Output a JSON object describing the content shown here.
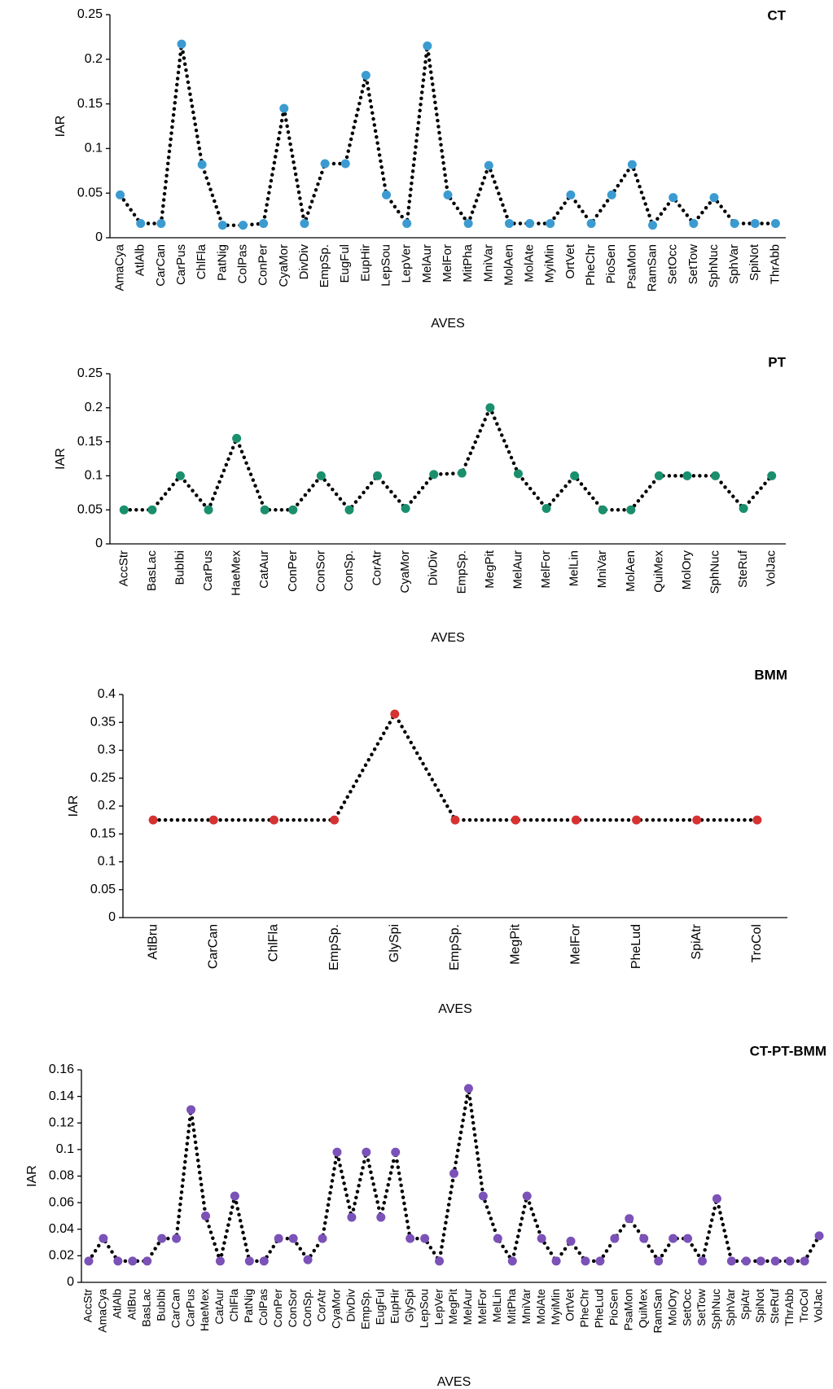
{
  "chart_data": [
    {
      "type": "line",
      "title": "CT",
      "x_label": "AVES",
      "y_label": "IAR",
      "color": "#3b9bd1",
      "categories": [
        "AmaCya",
        "AtlAlb",
        "CarCan",
        "CarPus",
        "ChlFla",
        "PatNig",
        "ColPas",
        "ConPer",
        "CyaMor",
        "DivDiv",
        "EmpSp.",
        "EugFul",
        "EupHir",
        "LepSou",
        "LepVer",
        "MelAur",
        "MelFor",
        "MitPha",
        "MniVar",
        "MolAen",
        "MolAte",
        "MyiMin",
        "OrtVet",
        "PheChr",
        "PioSen",
        "PsaMon",
        "RamSan",
        "SetOcc",
        "SetTow",
        "SphNuc",
        "SphVar",
        "SpiNot",
        "ThrAbb"
      ],
      "values": [
        0.048,
        0.016,
        0.016,
        0.217,
        0.082,
        0.014,
        0.014,
        0.016,
        0.145,
        0.016,
        0.083,
        0.083,
        0.182,
        0.048,
        0.016,
        0.215,
        0.048,
        0.016,
        0.081,
        0.016,
        0.016,
        0.016,
        0.048,
        0.016,
        0.048,
        0.082,
        0.014,
        0.045,
        0.016,
        0.045,
        0.016,
        0.016,
        0.016
      ],
      "ylim": [
        0,
        0.25
      ],
      "yticks": [
        0,
        0.05,
        0.1,
        0.15,
        0.2,
        0.25
      ]
    },
    {
      "type": "line",
      "title": "PT",
      "x_label": "AVES",
      "y_label": "IAR",
      "color": "#1a8f6e",
      "categories": [
        "AccStr",
        "BasLac",
        "BubIbi",
        "CarPus",
        "HaeMex",
        "CatAur",
        "ConPer",
        "ConSor",
        "ConSp.",
        "CorAtr",
        "CyaMor",
        "DivDiv",
        "EmpSp.",
        "MegPit",
        "MelAur",
        "MelFor",
        "MelLin",
        "MniVar",
        "MolAen",
        "QuiMex",
        "MolOry",
        "SphNuc",
        "SteRuf",
        "VolJac"
      ],
      "values": [
        0.05,
        0.05,
        0.1,
        0.05,
        0.155,
        0.05,
        0.05,
        0.1,
        0.05,
        0.1,
        0.052,
        0.102,
        0.104,
        0.2,
        0.103,
        0.052,
        0.1,
        0.05,
        0.05,
        0.1,
        0.1,
        0.1,
        0.052,
        0.1
      ],
      "ylim": [
        0,
        0.25
      ],
      "yticks": [
        0,
        0.05,
        0.1,
        0.15,
        0.2,
        0.25
      ]
    },
    {
      "type": "line",
      "title": "BMM",
      "x_label": "AVES",
      "y_label": "IAR",
      "color": "#d63232",
      "categories": [
        "AtlBru",
        "CarCan",
        "ChlFla",
        "EmpSp.",
        "GlySpi",
        "EmpSp.",
        "MegPit",
        "MelFor",
        "PheLud",
        "SpiAtr",
        "TroCol"
      ],
      "values": [
        0.175,
        0.175,
        0.175,
        0.175,
        0.365,
        0.175,
        0.175,
        0.175,
        0.175,
        0.175,
        0.175
      ],
      "ylim": [
        0,
        0.4
      ],
      "yticks": [
        0,
        0.05,
        0.1,
        0.15,
        0.2,
        0.25,
        0.3,
        0.35,
        0.4
      ]
    },
    {
      "type": "line",
      "title": "CT-PT-BMM",
      "x_label": "AVES",
      "y_label": "IAR",
      "color": "#7a52b8",
      "categories": [
        "AccStr",
        "AmaCya",
        "AtlAlb",
        "AtlBru",
        "BasLac",
        "BubIbi",
        "CarCan",
        "CarPus",
        "HaeMex",
        "CatAur",
        "ChlFla",
        "PatNig",
        "ColPas",
        "ConPer",
        "ConSor",
        "ConSp.",
        "CorAtr",
        "CyaMor",
        "DivDiv",
        "EmpSp.",
        "EugFul",
        "EupHir",
        "GlySpi",
        "LepSou",
        "LepVer",
        "MegPit",
        "MelAur",
        "MelFor",
        "MelLin",
        "MitPha",
        "MniVar",
        "MolAte",
        "MyiMin",
        "OrtVet",
        "PheChr",
        "PheLud",
        "PioSen",
        "PsaMon",
        "QuiMex",
        "RamSan",
        "MolOry",
        "SetOcc",
        "SetTow",
        "SphNuc",
        "SphVar",
        "SpiAtr",
        "SpiNot",
        "SteRuf",
        "ThrAbb",
        "TroCol",
        "VolJac"
      ],
      "values": [
        0.016,
        0.033,
        0.016,
        0.016,
        0.016,
        0.033,
        0.033,
        0.13,
        0.05,
        0.016,
        0.065,
        0.016,
        0.016,
        0.033,
        0.033,
        0.017,
        0.033,
        0.098,
        0.049,
        0.098,
        0.049,
        0.098,
        0.033,
        0.033,
        0.016,
        0.082,
        0.146,
        0.065,
        0.033,
        0.016,
        0.065,
        0.033,
        0.016,
        0.031,
        0.016,
        0.016,
        0.033,
        0.048,
        0.033,
        0.016,
        0.033,
        0.033,
        0.016,
        0.063,
        0.016,
        0.016,
        0.016,
        0.016,
        0.016,
        0.016,
        0.035
      ],
      "ylim": [
        0,
        0.16
      ],
      "yticks": [
        0,
        0.02,
        0.04,
        0.06,
        0.08,
        0.1,
        0.12,
        0.14,
        0.16
      ]
    }
  ]
}
